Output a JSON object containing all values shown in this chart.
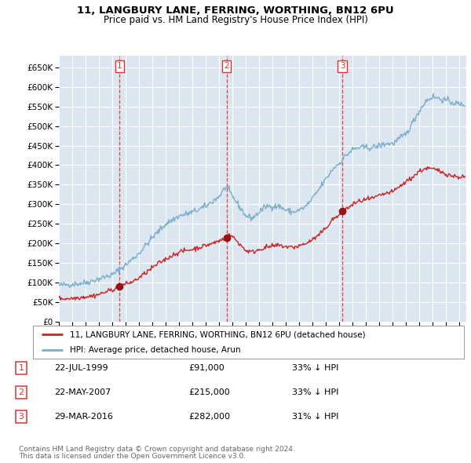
{
  "title_line1": "11, LANGBURY LANE, FERRING, WORTHING, BN12 6PU",
  "title_line2": "Price paid vs. HM Land Registry's House Price Index (HPI)",
  "xlim_start": 1995.0,
  "xlim_end": 2025.5,
  "ylim_min": 0,
  "ylim_max": 680000,
  "yticks": [
    0,
    50000,
    100000,
    150000,
    200000,
    250000,
    300000,
    350000,
    400000,
    450000,
    500000,
    550000,
    600000,
    650000
  ],
  "background_color": "#ffffff",
  "plot_bg_color": "#dce6f0",
  "grid_color": "#ffffff",
  "red_line_color": "#cc2222",
  "blue_line_color": "#7aaecc",
  "sale_marker_color": "#991111",
  "vline_color": "#dd3333",
  "legend_label_red": "11, LANGBURY LANE, FERRING, WORTHING, BN12 6PU (detached house)",
  "legend_label_blue": "HPI: Average price, detached house, Arun",
  "transactions": [
    {
      "num": 1,
      "date_x": 1999.55,
      "price": 91000,
      "date_str": "22-JUL-1999",
      "price_str": "£91,000",
      "hpi_str": "33% ↓ HPI"
    },
    {
      "num": 2,
      "date_x": 2007.55,
      "price": 215000,
      "date_str": "22-MAY-2007",
      "price_str": "£215,000",
      "hpi_str": "33% ↓ HPI"
    },
    {
      "num": 3,
      "date_x": 2016.23,
      "price": 282000,
      "date_str": "29-MAR-2016",
      "price_str": "£282,000",
      "hpi_str": "31% ↓ HPI"
    }
  ],
  "footer_line1": "Contains HM Land Registry data © Crown copyright and database right 2024.",
  "footer_line2": "This data is licensed under the Open Government Licence v3.0."
}
